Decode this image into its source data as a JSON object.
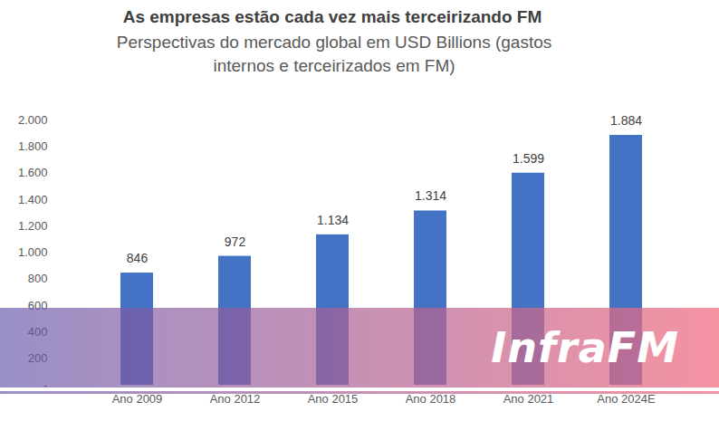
{
  "chart_data": {
    "type": "bar",
    "title": "As empresas estão cada vez mais terceirizando FM",
    "subtitle": "Perspectivas do mercado global em USD Billions (gastos internos e terceirizados em FM)",
    "categories": [
      "Ano 2009",
      "Ano 2012",
      "Ano 2015",
      "Ano 2018",
      "Ano 2021",
      "Ano 2024E"
    ],
    "values": [
      846,
      972,
      1134,
      1314,
      1599,
      1884
    ],
    "value_labels": [
      "846",
      "972",
      "1.134",
      "1.314",
      "1.599",
      "1.884"
    ],
    "color": "#4472c4",
    "ylim": [
      0,
      2000
    ],
    "yticks": [
      {
        "value": 0,
        "label": "-"
      },
      200,
      400,
      600,
      800,
      {
        "value": 1000,
        "label": "1.000"
      },
      {
        "value": 1200,
        "label": "1.200"
      },
      {
        "value": 1400,
        "label": "1.400"
      },
      {
        "value": 1600,
        "label": "1.600"
      },
      {
        "value": 1800,
        "label": "1.800"
      },
      {
        "value": 2000,
        "label": "2.000"
      }
    ],
    "grid": false,
    "data_labels": true
  },
  "watermark": "InfraFM"
}
